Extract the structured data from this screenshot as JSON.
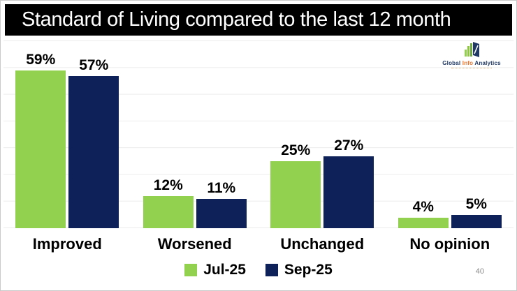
{
  "slide": {
    "title": "Standard of Living compared to the last 12 month",
    "page_number": "40"
  },
  "logo": {
    "text_parts": {
      "global": "Global",
      "info": "Info",
      "analytics": "Analytics"
    },
    "colors": {
      "navy": "#1F3864",
      "orange": "#E8742C",
      "green": "#92D050"
    }
  },
  "chart_data": {
    "type": "bar",
    "title": "Standard of Living compared to the last 12 month",
    "categories": [
      "Improved",
      "Worsened",
      "Unchanged",
      "No opinion"
    ],
    "series": [
      {
        "name": "Jul-25",
        "color": "#92D050",
        "values": [
          59,
          12,
          25,
          4
        ]
      },
      {
        "name": "Sep-25",
        "color": "#0E2158",
        "values": [
          57,
          11,
          27,
          5
        ]
      }
    ],
    "value_suffix": "%",
    "ylim": [
      0,
      70
    ],
    "gridlines_every": 10,
    "grid": true,
    "data_labels": true,
    "legend_position": "bottom"
  }
}
